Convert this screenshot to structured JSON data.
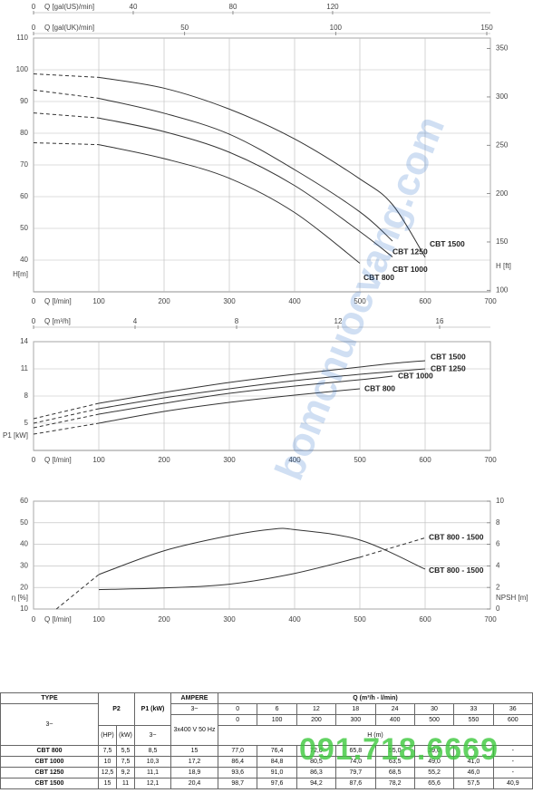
{
  "chart_data": [
    {
      "type": "line",
      "x_axis_label": "Q [l/min]",
      "xlim": [
        0,
        700
      ],
      "xticks": [
        0,
        100,
        200,
        300,
        400,
        500,
        600,
        700
      ],
      "y_axis_label": "H[m]",
      "ylim": [
        30,
        110
      ],
      "yticks": [
        40,
        50,
        60,
        70,
        80,
        90,
        100,
        110
      ],
      "y2_axis_label": "H [ft]",
      "y2lim": [
        98.43,
        360.89
      ],
      "y2ticks": [
        100,
        150,
        200,
        250,
        300,
        350
      ],
      "secondary_x_axes": [
        {
          "label": "Q [gal(US)/min]",
          "xlim": [
            0,
            183.3
          ],
          "xticks": [
            0,
            40,
            80,
            120
          ]
        },
        {
          "label": "Q [gal(UK)/min]",
          "xlim": [
            0,
            151.2
          ],
          "xticks": [
            0,
            50,
            100,
            150
          ]
        },
        {
          "label": "Q [m³/h]",
          "xlim": [
            0,
            18
          ],
          "xticks": [
            0,
            4,
            8,
            12,
            16
          ]
        }
      ],
      "grid": true,
      "x": [
        0,
        100,
        200,
        300,
        400,
        500,
        550,
        600
      ],
      "series": [
        {
          "name": "CBT 800",
          "color": "#333333",
          "dashed": "start",
          "values": [
            77.0,
            76.4,
            72.0,
            65.8,
            55.0,
            39.0,
            null,
            null
          ]
        },
        {
          "name": "CBT 1000",
          "color": "#333333",
          "dashed": "start",
          "values": [
            86.4,
            84.8,
            80.5,
            74.0,
            63.5,
            49.0,
            41.0,
            null
          ]
        },
        {
          "name": "CBT 1250",
          "color": "#333333",
          "dashed": "start",
          "values": [
            93.6,
            91.0,
            86.3,
            79.7,
            68.5,
            55.2,
            46.0,
            null
          ]
        },
        {
          "name": "CBT 1500",
          "color": "#333333",
          "dashed": "start",
          "values": [
            98.7,
            97.6,
            94.2,
            87.6,
            78.2,
            65.6,
            57.5,
            40.9
          ]
        }
      ]
    },
    {
      "type": "line",
      "x_axis_label": "Q [l/min]",
      "xlim": [
        0,
        700
      ],
      "xticks": [
        0,
        100,
        200,
        300,
        400,
        500,
        600,
        700
      ],
      "y_axis_label": "P1 [kW]",
      "ylim": [
        2,
        14
      ],
      "yticks": [
        5,
        8,
        11,
        14
      ],
      "grid": true,
      "x": [
        0,
        100,
        200,
        300,
        400,
        500,
        550,
        600
      ],
      "series": [
        {
          "name": "CBT 800",
          "color": "#333333",
          "dashed": "start",
          "values": [
            3.8,
            5.0,
            6.3,
            7.3,
            8.1,
            8.8,
            null,
            null
          ]
        },
        {
          "name": "CBT 1000",
          "color": "#333333",
          "dashed": "start",
          "values": [
            4.5,
            6.0,
            7.2,
            8.3,
            9.1,
            9.8,
            10.2,
            null
          ]
        },
        {
          "name": "CBT 1250",
          "color": "#333333",
          "dashed": "start",
          "values": [
            5.0,
            6.6,
            7.8,
            8.8,
            9.7,
            10.4,
            10.7,
            11.0
          ]
        },
        {
          "name": "CBT 1500",
          "color": "#333333",
          "dashed": "start",
          "values": [
            5.5,
            7.2,
            8.4,
            9.5,
            10.4,
            11.2,
            11.6,
            11.9
          ]
        }
      ]
    },
    {
      "type": "line",
      "x_axis_label": "Q [l/min]",
      "xlim": [
        0,
        700
      ],
      "xticks": [
        0,
        100,
        200,
        300,
        400,
        500,
        600,
        700
      ],
      "y_axis_label": "η [%]",
      "ylim": [
        10,
        60
      ],
      "yticks": [
        10,
        20,
        30,
        40,
        50,
        60
      ],
      "y2_axis_label": "NPSH [m]",
      "y2lim": [
        0,
        10
      ],
      "y2ticks": [
        0,
        2,
        4,
        6,
        8,
        10
      ],
      "grid": true,
      "series": [
        {
          "name": "CBT 800 - 1500",
          "color": "#333333",
          "dashed": "start",
          "axis": "y",
          "x": [
            35,
            100,
            200,
            300,
            365,
            400,
            500,
            600
          ],
          "values": [
            10,
            26,
            37,
            44,
            47,
            46.8,
            42,
            28.5
          ]
        },
        {
          "name": "CBT 800 - 1500",
          "color": "#333333",
          "dashed": "end",
          "axis": "y2",
          "x": [
            100,
            200,
            300,
            400,
            500,
            600
          ],
          "values": [
            1.8,
            1.95,
            2.3,
            3.3,
            4.8,
            6.6
          ]
        }
      ]
    }
  ],
  "table": {
    "type_header": "TYPE",
    "type_phase": "3~",
    "p2_header": "P2",
    "p2_units": [
      "(HP)",
      "(kW)"
    ],
    "p1_header": "P1 (kW)",
    "p1_phase": "3~",
    "ampere_header": "AMPERE",
    "ampere_phase": "3~",
    "voltage": "3x400 V 50 Hz",
    "q_header": "Q (m³/h - l/min)",
    "q_m3h": [
      "0",
      "6",
      "12",
      "18",
      "24",
      "30",
      "33",
      "36"
    ],
    "q_lmin": [
      "0",
      "100",
      "200",
      "300",
      "400",
      "500",
      "550",
      "600"
    ],
    "h_header": "H (m)",
    "rows": [
      [
        "CBT 800",
        "7,5",
        "5,5",
        "8,5",
        "15",
        "77,0",
        "76,4",
        "72,0",
        "65,8",
        "55,0",
        "39,0",
        "-",
        "-"
      ],
      [
        "CBT 1000",
        "10",
        "7,5",
        "10,3",
        "17,2",
        "86,4",
        "84,8",
        "80,5",
        "74,0",
        "63,5",
        "49,0",
        "41,0",
        "-"
      ],
      [
        "CBT 1250",
        "12,5",
        "9,2",
        "11,1",
        "18,9",
        "93,6",
        "91,0",
        "86,3",
        "79,7",
        "68,5",
        "55,2",
        "46,0",
        "-"
      ],
      [
        "CBT 1500",
        "15",
        "11",
        "12,1",
        "20,4",
        "98,7",
        "97,6",
        "94,2",
        "87,6",
        "78,2",
        "65,6",
        "57,5",
        "40,9"
      ]
    ]
  },
  "watermark_site": "bomcnuocvang.com",
  "watermark_phone": "091.718.6669"
}
